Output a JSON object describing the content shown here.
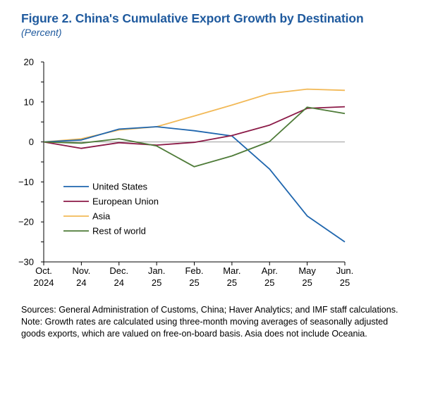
{
  "figure": {
    "title": "Figure 2. China's Cumulative Export Growth by Destination",
    "subtitle": "(Percent)"
  },
  "chart_data": {
    "type": "line",
    "title": "Figure 2. China's Cumulative Export Growth by Destination",
    "ylabel": "(Percent)",
    "xlabel": "",
    "categories": [
      "Oct. 2024",
      "Nov. 24",
      "Dec. 24",
      "Jan. 25",
      "Feb. 25",
      "Mar. 25",
      "Apr. 25",
      "May 25",
      "Jun. 25"
    ],
    "x_tick_labels": [
      [
        "Oct.",
        "2024"
      ],
      [
        "Nov.",
        "24"
      ],
      [
        "Dec.",
        "24"
      ],
      [
        "Jan.",
        "25"
      ],
      [
        "Feb.",
        "25"
      ],
      [
        "Mar.",
        "25"
      ],
      [
        "Apr.",
        "25"
      ],
      [
        "May",
        "25"
      ],
      [
        "Jun.",
        "25"
      ]
    ],
    "ylim": [
      -30,
      20
    ],
    "yticks": [
      20,
      10,
      0,
      -10,
      -20,
      -30
    ],
    "ytick_labels": [
      "20",
      "10",
      "0",
      "−10",
      "−20",
      "−30"
    ],
    "zero_line": true,
    "grid": false,
    "legend_position": "lower-left",
    "series": [
      {
        "name": "United States",
        "color": "#1f66ae",
        "values": [
          0,
          0.5,
          3.2,
          3.8,
          2.8,
          1.5,
          -6.8,
          -18.5,
          -25
        ]
      },
      {
        "name": "European Union",
        "color": "#8b1a47",
        "values": [
          0,
          -1.6,
          -0.2,
          -0.8,
          -0.1,
          1.6,
          4.2,
          8.4,
          8.8
        ]
      },
      {
        "name": "Asia",
        "color": "#f2b957",
        "values": [
          0,
          0.8,
          3.0,
          3.8,
          6.5,
          9.2,
          12.1,
          13.2,
          12.9
        ]
      },
      {
        "name": "Rest of world",
        "color": "#4e7b38",
        "values": [
          0,
          -0.3,
          0.8,
          -1.0,
          -6.2,
          -3.5,
          0.1,
          8.7,
          7.1
        ]
      }
    ]
  },
  "notes": {
    "sources": "Sources: General Administration of Customs, China; Haver Analytics; and IMF staff calculations.",
    "note": "Note: Growth rates are calculated using three-month moving averages of seasonally adjusted goods exports, which are valued on free-on-board basis. Asia does not include Oceania."
  }
}
